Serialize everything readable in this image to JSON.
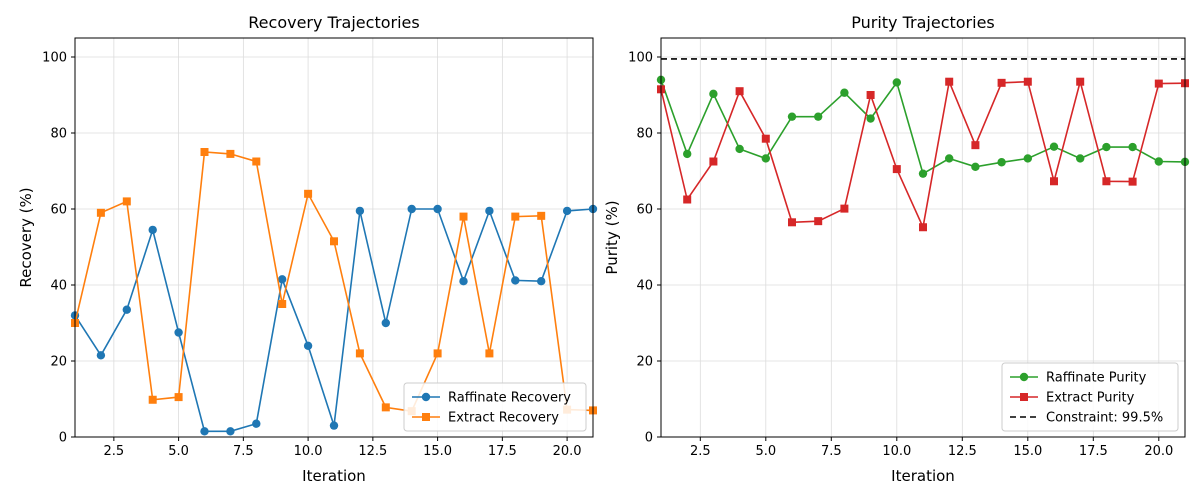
{
  "chart_data": [
    {
      "type": "line",
      "title": "Recovery Trajectories",
      "xlabel": "Iteration",
      "ylabel": "Recovery (%)",
      "xlim": [
        1,
        21
      ],
      "ylim": [
        0,
        105
      ],
      "xticks": [
        2.5,
        5.0,
        7.5,
        10.0,
        12.5,
        15.0,
        17.5,
        20.0
      ],
      "xtick_labels": [
        "2.5",
        "5.0",
        "7.5",
        "10.0",
        "12.5",
        "15.0",
        "17.5",
        "20.0"
      ],
      "yticks": [
        0,
        20,
        40,
        60,
        80,
        100
      ],
      "ytick_labels": [
        "0",
        "20",
        "40",
        "60",
        "80",
        "100"
      ],
      "grid": true,
      "legend_position": "lower-right",
      "x": [
        1,
        2,
        3,
        4,
        5,
        6,
        7,
        8,
        9,
        10,
        11,
        12,
        13,
        14,
        15,
        16,
        17,
        18,
        19,
        20,
        21
      ],
      "series": [
        {
          "name": "Raffinate Recovery",
          "color": "#1f77b4",
          "marker": "circle",
          "values": [
            32,
            21.5,
            33.5,
            54.5,
            27.5,
            1.5,
            1.5,
            3.5,
            41.5,
            24,
            3,
            59.5,
            30,
            60,
            60,
            41,
            59.5,
            41.2,
            41,
            59.5,
            60
          ]
        },
        {
          "name": "Extract Recovery",
          "color": "#ff7f0e",
          "marker": "square",
          "values": [
            30,
            59,
            62,
            9.8,
            10.5,
            75,
            74.5,
            72.5,
            35,
            64,
            51.5,
            22,
            7.8,
            6.8,
            22,
            58,
            22,
            58,
            58.2,
            7.2,
            7
          ]
        }
      ]
    },
    {
      "type": "line",
      "title": "Purity Trajectories",
      "xlabel": "Iteration",
      "ylabel": "Purity (%)",
      "xlim": [
        1,
        21
      ],
      "ylim": [
        0,
        105
      ],
      "xticks": [
        2.5,
        5.0,
        7.5,
        10.0,
        12.5,
        15.0,
        17.5,
        20.0
      ],
      "xtick_labels": [
        "2.5",
        "5.0",
        "7.5",
        "10.0",
        "12.5",
        "15.0",
        "17.5",
        "20.0"
      ],
      "yticks": [
        0,
        20,
        40,
        60,
        80,
        100
      ],
      "ytick_labels": [
        "0",
        "20",
        "40",
        "60",
        "80",
        "100"
      ],
      "grid": true,
      "legend_position": "lower-right",
      "x": [
        1,
        2,
        3,
        4,
        5,
        6,
        7,
        8,
        9,
        10,
        11,
        12,
        13,
        14,
        15,
        16,
        17,
        18,
        19,
        20,
        21
      ],
      "series": [
        {
          "name": "Raffinate Purity",
          "color": "#2ca02c",
          "marker": "circle",
          "values": [
            94,
            74.5,
            90.3,
            75.8,
            73.3,
            84.3,
            84.3,
            90.6,
            83.8,
            93.3,
            69.3,
            73.3,
            71.1,
            72.3,
            73.3,
            76.4,
            73.3,
            76.3,
            76.3,
            72.5,
            72.4
          ]
        },
        {
          "name": "Extract Purity",
          "color": "#d62728",
          "marker": "square",
          "values": [
            91.5,
            62.5,
            72.5,
            91,
            78.5,
            56.5,
            56.8,
            60.1,
            90,
            70.5,
            55.2,
            93.5,
            76.8,
            93.2,
            93.5,
            67.3,
            93.5,
            67.3,
            67.2,
            93,
            93.1
          ]
        }
      ],
      "reference_line": {
        "name": "Constraint: 99.5%",
        "value": 99.5,
        "color": "#000000",
        "style": "dashed"
      }
    }
  ]
}
